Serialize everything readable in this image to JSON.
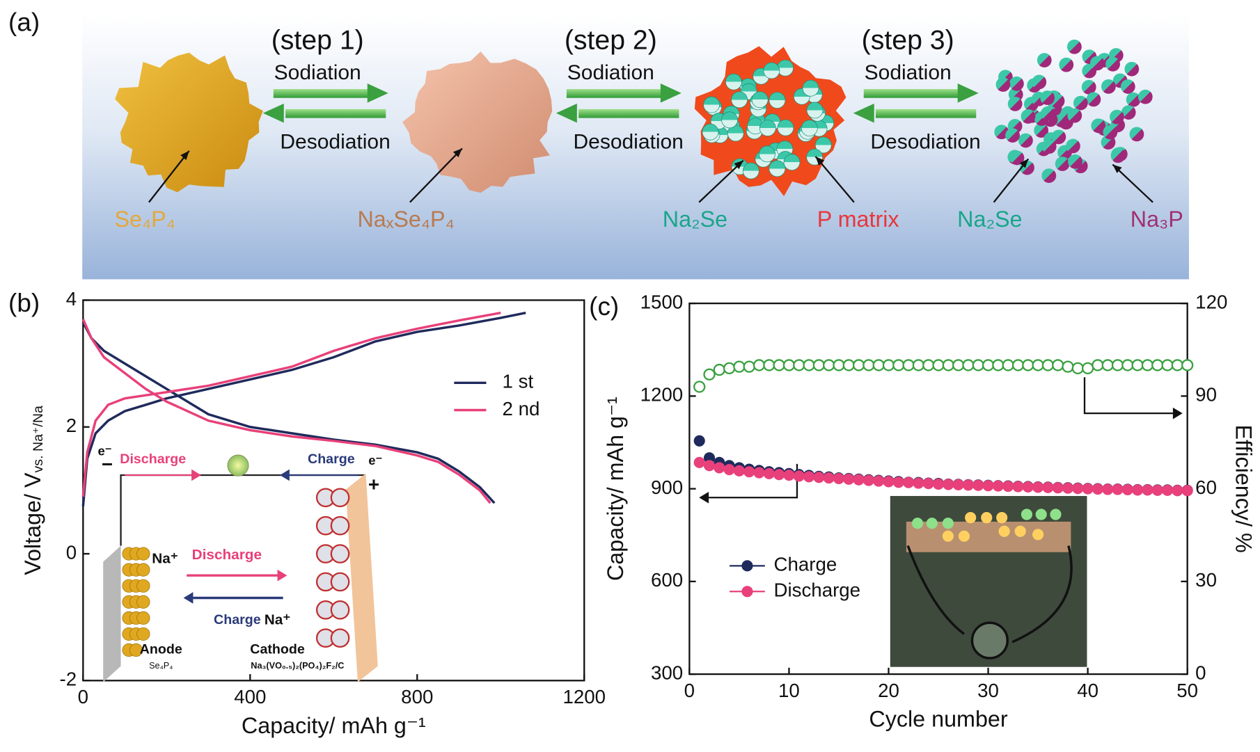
{
  "figure": {
    "panel_labels": [
      "(a)",
      "(b)",
      "(c)"
    ]
  },
  "diagram": {
    "steps": [
      {
        "step": "(step 1)",
        "forward": "Sodiation",
        "backward": "Desodiation"
      },
      {
        "step": "(step 2)",
        "forward": "Sodiation",
        "backward": "Desodiation"
      },
      {
        "step": "(step 3)",
        "forward": "Sodiation",
        "backward": "Desodiation"
      }
    ],
    "labels": [
      "Se₄P₄",
      "NaₓSe₄P₄",
      "Na₂Se",
      "P matrix",
      "Na₂Se",
      "Na₃P"
    ]
  },
  "chart_data": [
    {
      "type": "line",
      "x_label": "Capacity/ mAh g⁻¹",
      "y_label": "Voltage/ V",
      "y_label_sub": "vs. Na⁺/Na",
      "xlim": [
        0,
        1200
      ],
      "xticks": [
        0,
        400,
        800,
        1200
      ],
      "ylim": [
        -2,
        4
      ],
      "yticks": [
        -2,
        0,
        2,
        4
      ],
      "legend": "right",
      "series": [
        {
          "name": "1 st",
          "color": "#1f2a5c",
          "x": [
            0,
            20,
            50,
            100,
            150,
            200,
            300,
            400,
            500,
            600,
            700,
            800,
            850,
            900,
            950,
            985,
            null,
            0,
            10,
            30,
            60,
            100,
            150,
            200,
            300,
            400,
            500,
            600,
            700,
            800,
            900,
            1000,
            1060
          ],
          "values": [
            3.65,
            3.4,
            3.2,
            3.0,
            2.8,
            2.6,
            2.2,
            2.0,
            1.9,
            1.8,
            1.72,
            1.6,
            1.5,
            1.3,
            1.05,
            0.8,
            null,
            0.75,
            1.5,
            1.9,
            2.1,
            2.25,
            2.35,
            2.45,
            2.6,
            2.75,
            2.9,
            3.1,
            3.35,
            3.5,
            3.6,
            3.72,
            3.8
          ]
        },
        {
          "name": "2 nd",
          "color": "#e8407a",
          "x": [
            0,
            20,
            50,
            100,
            150,
            200,
            300,
            400,
            500,
            600,
            700,
            800,
            850,
            900,
            950,
            975,
            null,
            0,
            10,
            30,
            60,
            100,
            150,
            200,
            300,
            400,
            500,
            600,
            700,
            800,
            900,
            1000
          ],
          "values": [
            3.7,
            3.4,
            3.1,
            2.85,
            2.6,
            2.4,
            2.1,
            1.95,
            1.85,
            1.78,
            1.7,
            1.55,
            1.45,
            1.25,
            1.0,
            0.8,
            null,
            0.9,
            1.6,
            2.1,
            2.35,
            2.45,
            2.5,
            2.55,
            2.65,
            2.8,
            2.95,
            3.2,
            3.4,
            3.55,
            3.68,
            3.8
          ]
        }
      ],
      "annotations": [
        "e⁻",
        "−",
        "Discharge",
        "Charge",
        "e⁻",
        "+",
        "Na⁺",
        "Discharge",
        "Charge",
        "Na⁺",
        "Anode",
        "Se₄P₄",
        "Cathode",
        "Na₃(VO₀.₅)₂(PO₄)₂F₂/C"
      ]
    },
    {
      "type": "scatter",
      "x_label": "Cycle number",
      "y_label": "Capacity/ mAh g⁻¹",
      "y2_label": "Efficiency/ %",
      "xlim": [
        0,
        50
      ],
      "xticks": [
        0,
        10,
        20,
        30,
        40,
        50
      ],
      "ylim": [
        300,
        1500
      ],
      "yticks": [
        300,
        600,
        900,
        1200,
        1500
      ],
      "y2lim": [
        0,
        120
      ],
      "y2ticks": [
        0,
        30,
        60,
        90,
        120
      ],
      "legend": "lower left",
      "x": [
        1,
        2,
        3,
        4,
        5,
        6,
        7,
        8,
        9,
        10,
        11,
        12,
        13,
        14,
        15,
        16,
        17,
        18,
        19,
        20,
        21,
        22,
        23,
        24,
        25,
        26,
        27,
        28,
        29,
        30,
        31,
        32,
        33,
        34,
        35,
        36,
        37,
        38,
        39,
        40,
        41,
        42,
        43,
        44,
        45,
        46,
        47,
        48,
        49,
        50
      ],
      "series": [
        {
          "name": "Charge",
          "color": "#1f2a5c",
          "values": [
            1055,
            1000,
            985,
            975,
            968,
            963,
            959,
            955,
            952,
            949,
            946,
            943,
            940,
            938,
            935,
            933,
            931,
            929,
            927,
            925,
            923,
            921,
            920,
            918,
            917,
            915,
            914,
            913,
            912,
            911,
            910,
            909,
            908,
            907,
            906,
            905,
            904,
            903,
            902,
            901,
            900,
            899,
            899,
            898,
            897,
            897,
            896,
            896,
            895,
            895
          ]
        },
        {
          "name": "Discharge",
          "color": "#e8407a",
          "values": [
            985,
            975,
            968,
            962,
            958,
            955,
            952,
            949,
            946,
            944,
            941,
            939,
            937,
            935,
            933,
            931,
            929,
            927,
            925,
            923,
            921,
            920,
            918,
            917,
            915,
            914,
            913,
            912,
            911,
            910,
            909,
            908,
            907,
            906,
            905,
            904,
            903,
            902,
            901,
            900,
            899,
            898,
            898,
            897,
            896,
            896,
            895,
            895,
            894,
            894
          ]
        },
        {
          "name": "Efficiency",
          "color": "#3aa040",
          "axis": "y2",
          "values": [
            93,
            97,
            98.5,
            99,
            99.5,
            99.5,
            100,
            100,
            100,
            100,
            100,
            100,
            100,
            100,
            100,
            100,
            100,
            100,
            100,
            100,
            100,
            100,
            100,
            100,
            100,
            100,
            100,
            100,
            100,
            100,
            100,
            100,
            100,
            100,
            100,
            100,
            100,
            99.5,
            99,
            99,
            100,
            100,
            100,
            100,
            100,
            100,
            100,
            100,
            100,
            100
          ]
        }
      ]
    }
  ]
}
